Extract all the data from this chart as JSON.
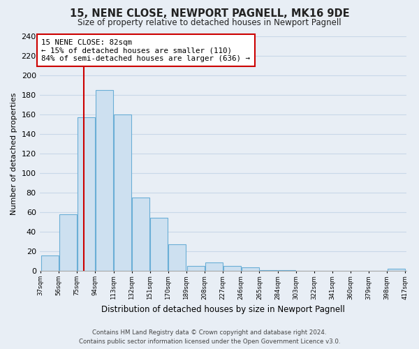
{
  "title": "15, NENE CLOSE, NEWPORT PAGNELL, MK16 9DE",
  "subtitle": "Size of property relative to detached houses in Newport Pagnell",
  "xlabel": "Distribution of detached houses by size in Newport Pagnell",
  "ylabel": "Number of detached properties",
  "bar_color": "#cde0f0",
  "bar_edge_color": "#6aaed6",
  "bin_edges": [
    37,
    56,
    75,
    94,
    113,
    132,
    151,
    170,
    189,
    208,
    227,
    246,
    265,
    284,
    303,
    322,
    341,
    360,
    379,
    398,
    417
  ],
  "bar_heights": [
    16,
    58,
    157,
    185,
    160,
    75,
    54,
    27,
    5,
    9,
    5,
    4,
    1,
    1,
    0,
    0,
    0,
    0,
    0,
    2
  ],
  "tick_labels": [
    "37sqm",
    "56sqm",
    "75sqm",
    "94sqm",
    "113sqm",
    "132sqm",
    "151sqm",
    "170sqm",
    "189sqm",
    "208sqm",
    "227sqm",
    "246sqm",
    "265sqm",
    "284sqm",
    "303sqm",
    "322sqm",
    "341sqm",
    "360sqm",
    "379sqm",
    "398sqm",
    "417sqm"
  ],
  "ylim": [
    0,
    240
  ],
  "yticks": [
    0,
    20,
    40,
    60,
    80,
    100,
    120,
    140,
    160,
    180,
    200,
    220,
    240
  ],
  "vline_x": 82,
  "vline_color": "#cc0000",
  "annotation_title": "15 NENE CLOSE: 82sqm",
  "annotation_line1": "← 15% of detached houses are smaller (110)",
  "annotation_line2": "84% of semi-detached houses are larger (636) →",
  "annotation_box_color": "#ffffff",
  "annotation_box_edge_color": "#cc0000",
  "footer_line1": "Contains HM Land Registry data © Crown copyright and database right 2024.",
  "footer_line2": "Contains public sector information licensed under the Open Government Licence v3.0.",
  "background_color": "#e8eef5",
  "grid_color": "#c8d8e8"
}
